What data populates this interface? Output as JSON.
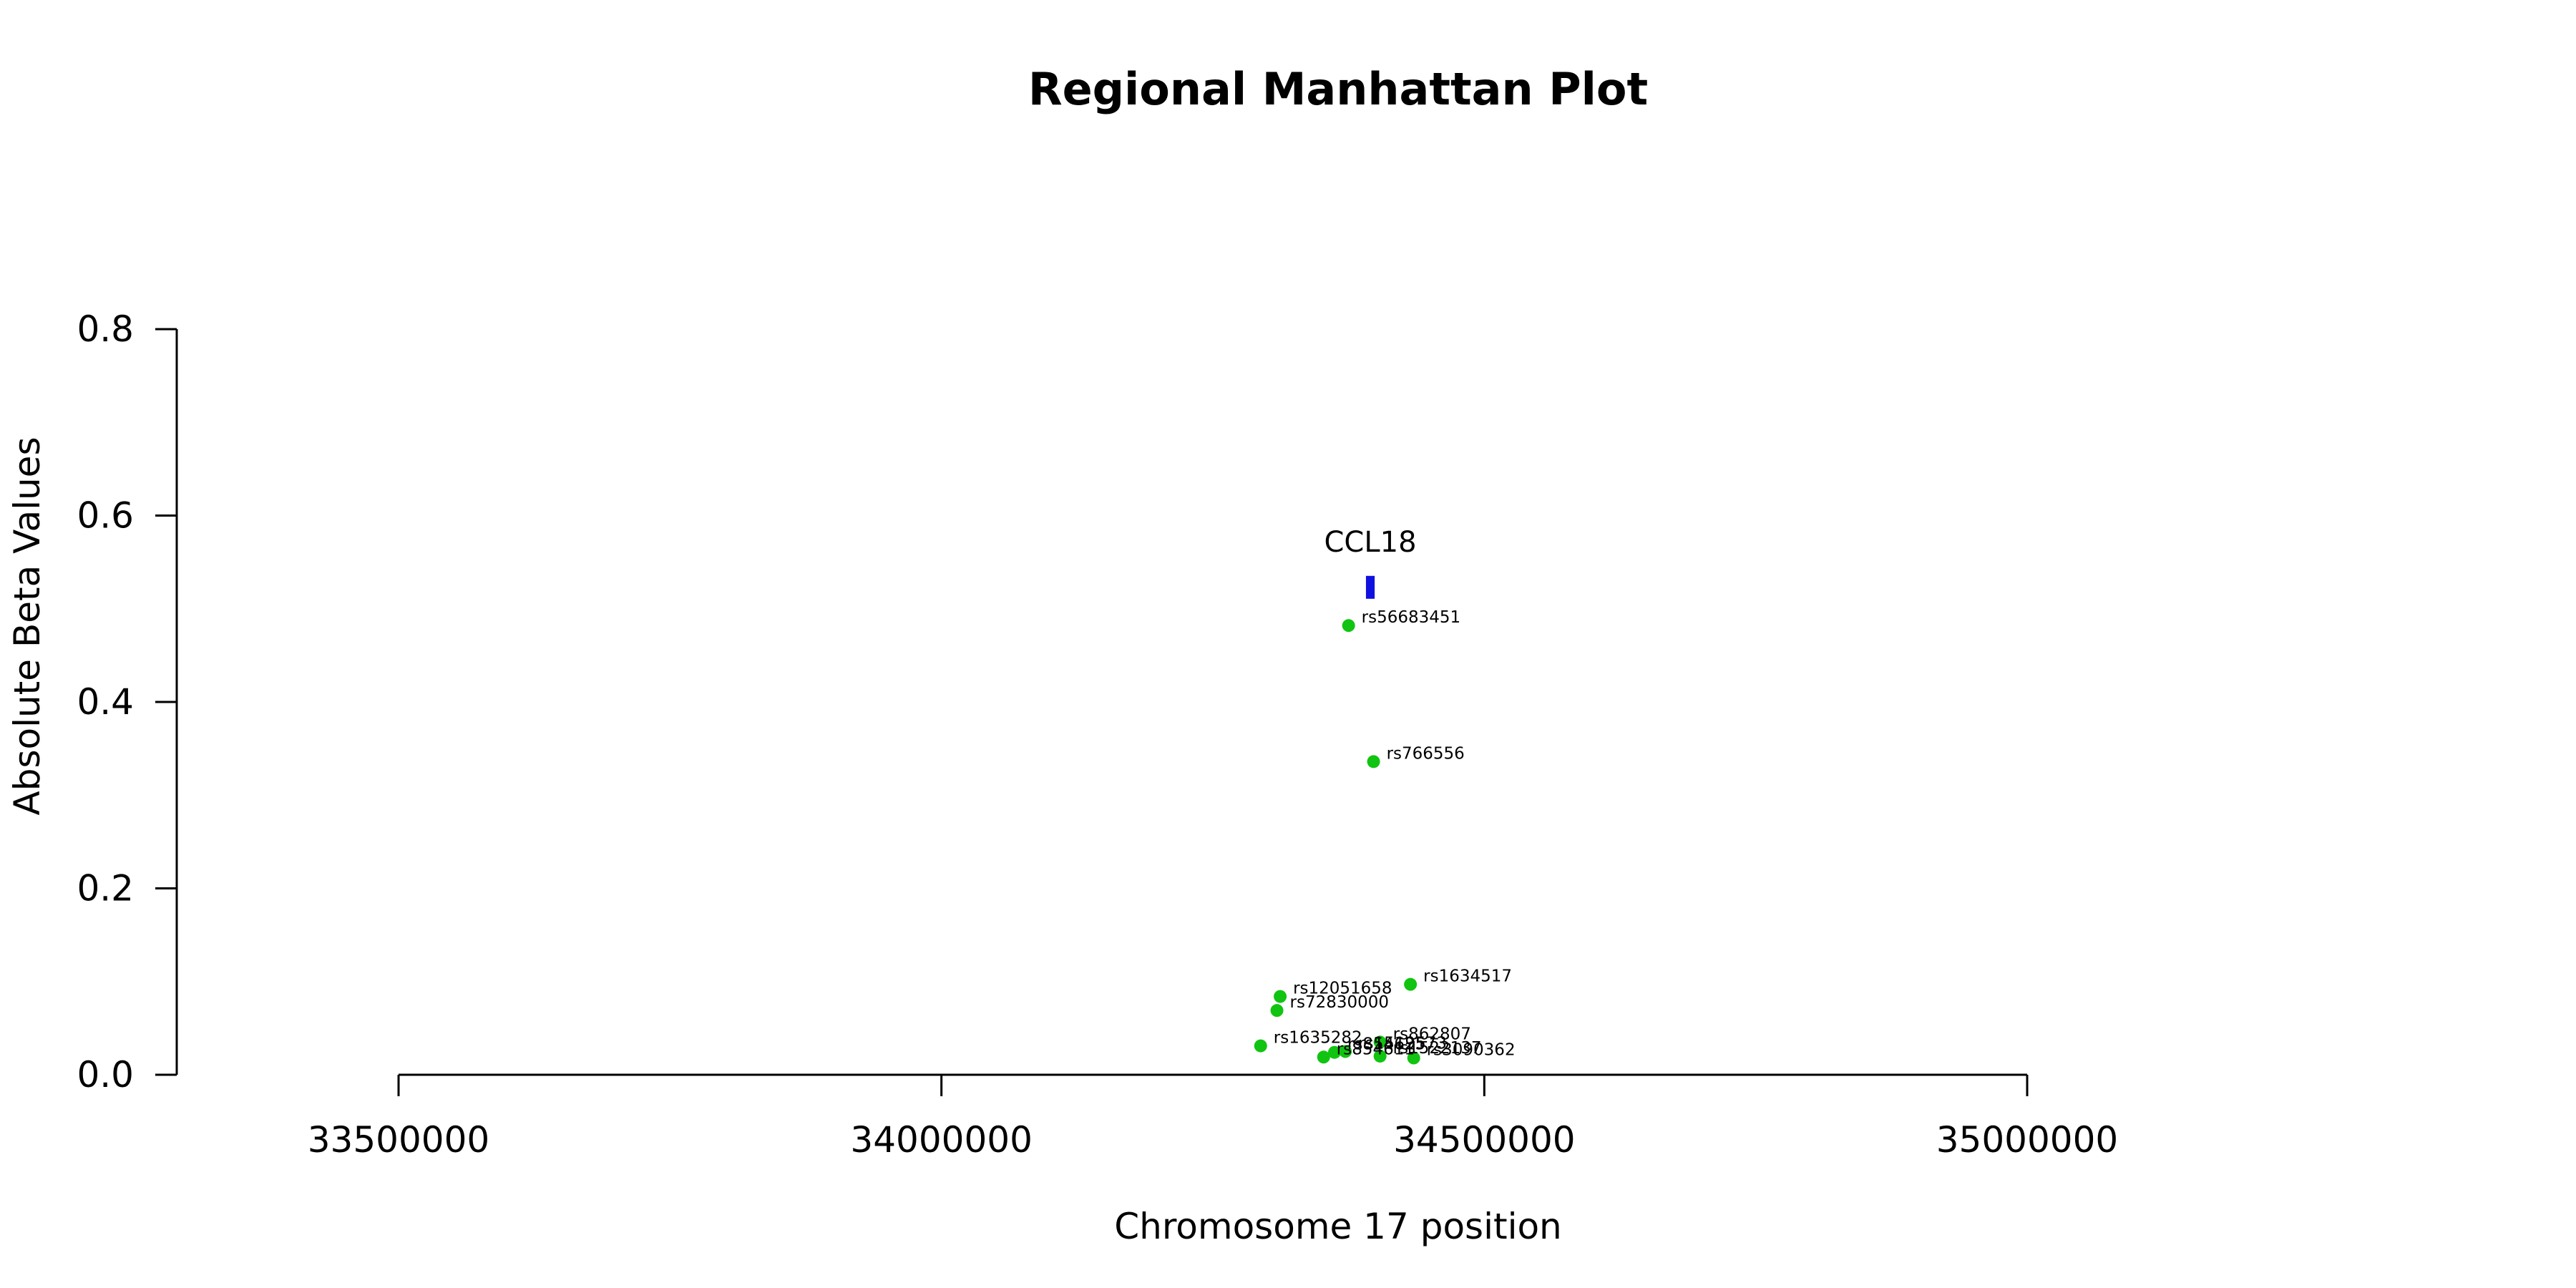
{
  "chart_data": {
    "type": "scatter",
    "title": "Regional Manhattan Plot",
    "xlabel": "Chromosome 17 position",
    "ylabel": "Absolute Beta Values",
    "xlim": [
      33300000,
      35000000
    ],
    "ylim": [
      0,
      0.8
    ],
    "x_ticks": [
      33500000,
      34000000,
      34500000,
      35000000
    ],
    "y_ticks": [
      0.0,
      0.2,
      0.4,
      0.6,
      0.8
    ],
    "x_tick_labels": [
      "33500000",
      "34000000",
      "34500000",
      "35000000"
    ],
    "y_tick_labels": [
      "0.0",
      "0.2",
      "0.4",
      "0.6",
      "0.8"
    ],
    "point_color": "#11c411",
    "gene_color": "#1010e0",
    "gene": {
      "name": "CCL18",
      "start": 34391000,
      "end": 34399000,
      "y": 0.523
    },
    "points": [
      {
        "snp": "rs56683451",
        "x": 34375000,
        "y": 0.482
      },
      {
        "snp": "rs766556",
        "x": 34398000,
        "y": 0.336
      },
      {
        "snp": "rs1634517",
        "x": 34432000,
        "y": 0.097
      },
      {
        "snp": "rs12051658",
        "x": 34312000,
        "y": 0.084
      },
      {
        "snp": "rs72830000",
        "x": 34309000,
        "y": 0.069
      },
      {
        "snp": "rs1635282",
        "x": 34294000,
        "y": 0.031
      },
      {
        "snp": "rs862807",
        "x": 34404000,
        "y": 0.035
      },
      {
        "snp": "rs1519573",
        "x": 34372000,
        "y": 0.025
      },
      {
        "snp": "rs3090362",
        "x": 34435000,
        "y": 0.018
      },
      {
        "snp": "rs854611",
        "x": 34352000,
        "y": 0.019
      },
      {
        "snp": "rs854625",
        "x": 34362000,
        "y": 0.024
      },
      {
        "snp": "rs1522137",
        "x": 34404000,
        "y": 0.02
      }
    ]
  }
}
